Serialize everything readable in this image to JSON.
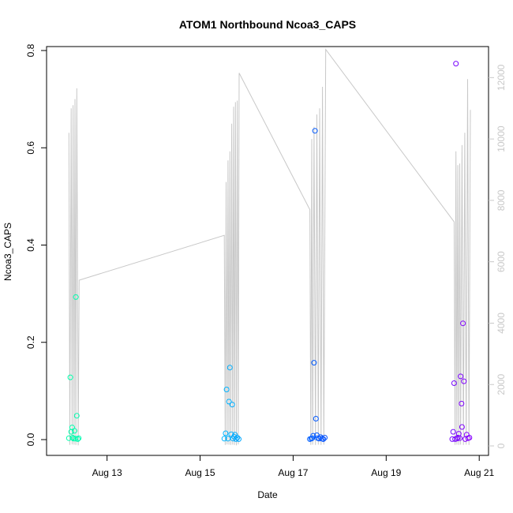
{
  "chart_data": {
    "type": "scatter",
    "title": "ATOM1 Northbound Ncoa3_CAPS",
    "xlabel": "Date",
    "ylabel": "Ncoa3_CAPS",
    "x_tick_labels": [
      "Aug 13",
      "Aug 15",
      "Aug 17",
      "Aug 19",
      "Aug 21"
    ],
    "x_ticks_days": [
      13,
      15,
      17,
      19,
      21
    ],
    "xlim_days": [
      11.7,
      21.2
    ],
    "ylim": [
      0,
      0.8
    ],
    "y_ticks": [
      "0.0",
      "0.2",
      "0.4",
      "0.6",
      "0.8"
    ],
    "y2lim": [
      0,
      12600
    ],
    "y2_ticks": [
      "0",
      "2000",
      "4000",
      "6000",
      "8000",
      "10000",
      "12000"
    ],
    "y2_color": "#c8c8c8",
    "grid": false,
    "point_series": {
      "name": "Ncoa3_CAPS",
      "marker": "open-circle",
      "colormap": [
        "#00ffaa",
        "#00ccff",
        "#0044ff",
        "#8800ff"
      ],
      "points": [
        {
          "day": 12.18,
          "value": 0.003
        },
        {
          "day": 12.21,
          "value": 0.128
        },
        {
          "day": 12.23,
          "value": 0.016
        },
        {
          "day": 12.25,
          "value": 0.025
        },
        {
          "day": 12.26,
          "value": 0.004
        },
        {
          "day": 12.28,
          "value": 0.002
        },
        {
          "day": 12.3,
          "value": 0.018
        },
        {
          "day": 12.32,
          "value": 0.002
        },
        {
          "day": 12.33,
          "value": 0.293
        },
        {
          "day": 12.35,
          "value": 0.049
        },
        {
          "day": 12.37,
          "value": 0.001
        },
        {
          "day": 12.39,
          "value": 0.003
        },
        {
          "day": 15.52,
          "value": 0.002
        },
        {
          "day": 15.55,
          "value": 0.013
        },
        {
          "day": 15.57,
          "value": 0.103
        },
        {
          "day": 15.6,
          "value": 0.002
        },
        {
          "day": 15.62,
          "value": 0.078
        },
        {
          "day": 15.64,
          "value": 0.148
        },
        {
          "day": 15.67,
          "value": 0.011
        },
        {
          "day": 15.69,
          "value": 0.072
        },
        {
          "day": 15.71,
          "value": 0.002
        },
        {
          "day": 15.73,
          "value": 0.006
        },
        {
          "day": 15.75,
          "value": 0.01
        },
        {
          "day": 15.77,
          "value": 0.001
        },
        {
          "day": 15.8,
          "value": 0.004
        },
        {
          "day": 15.83,
          "value": 0.001
        },
        {
          "day": 17.36,
          "value": 0.001
        },
        {
          "day": 17.39,
          "value": 0.002
        },
        {
          "day": 17.41,
          "value": 0.003
        },
        {
          "day": 17.43,
          "value": 0.008
        },
        {
          "day": 17.45,
          "value": 0.158
        },
        {
          "day": 17.47,
          "value": 0.635
        },
        {
          "day": 17.49,
          "value": 0.043
        },
        {
          "day": 17.51,
          "value": 0.009
        },
        {
          "day": 17.53,
          "value": 0.003
        },
        {
          "day": 17.56,
          "value": 0.002
        },
        {
          "day": 17.59,
          "value": 0.005
        },
        {
          "day": 17.62,
          "value": 0.002
        },
        {
          "day": 17.65,
          "value": 0.001
        },
        {
          "day": 17.68,
          "value": 0.004
        },
        {
          "day": 20.42,
          "value": 0.001
        },
        {
          "day": 20.44,
          "value": 0.016
        },
        {
          "day": 20.46,
          "value": 0.116
        },
        {
          "day": 20.48,
          "value": 0.001
        },
        {
          "day": 20.5,
          "value": 0.773
        },
        {
          "day": 20.52,
          "value": 0.002
        },
        {
          "day": 20.54,
          "value": 0.004
        },
        {
          "day": 20.56,
          "value": 0.012
        },
        {
          "day": 20.58,
          "value": 0.003
        },
        {
          "day": 20.6,
          "value": 0.13
        },
        {
          "day": 20.62,
          "value": 0.074
        },
        {
          "day": 20.63,
          "value": 0.026
        },
        {
          "day": 20.65,
          "value": 0.239
        },
        {
          "day": 20.67,
          "value": 0.12
        },
        {
          "day": 20.7,
          "value": 0.001
        },
        {
          "day": 20.73,
          "value": 0.01
        },
        {
          "day": 20.76,
          "value": 0.003
        },
        {
          "day": 20.79,
          "value": 0.004
        }
      ]
    },
    "line_series": {
      "name": "secondary",
      "color": "#c8c8c8",
      "axis": "right",
      "segments": [
        [
          [
            12.18,
            10200
          ],
          [
            12.2,
            30
          ],
          [
            12.23,
            11000
          ],
          [
            12.25,
            50
          ],
          [
            12.27,
            11100
          ],
          [
            12.29,
            40
          ],
          [
            12.31,
            11300
          ],
          [
            12.33,
            30
          ],
          [
            12.35,
            11650
          ],
          [
            12.38,
            20
          ],
          [
            12.4,
            5400
          ],
          [
            15.52,
            6860
          ],
          [
            15.54,
            30
          ],
          [
            15.56,
            8600
          ],
          [
            15.58,
            50
          ],
          [
            15.6,
            9300
          ],
          [
            15.62,
            40
          ],
          [
            15.64,
            9600
          ],
          [
            15.66,
            30
          ],
          [
            15.68,
            10500
          ],
          [
            15.7,
            40
          ],
          [
            15.72,
            11050
          ],
          [
            15.74,
            30
          ],
          [
            15.76,
            11200
          ],
          [
            15.78,
            20
          ],
          [
            15.8,
            11250
          ],
          [
            15.82,
            50
          ],
          [
            15.84,
            12150
          ],
          [
            17.36,
            7700
          ],
          [
            17.38,
            30
          ],
          [
            17.4,
            10000
          ],
          [
            17.42,
            40
          ],
          [
            17.45,
            10400
          ],
          [
            17.48,
            30
          ],
          [
            17.51,
            10800
          ],
          [
            17.54,
            40
          ],
          [
            17.57,
            11000
          ],
          [
            17.6,
            30
          ],
          [
            17.63,
            11700
          ],
          [
            17.66,
            40
          ],
          [
            17.7,
            12920
          ],
          [
            20.46,
            7300
          ],
          [
            20.48,
            30
          ],
          [
            20.5,
            9600
          ],
          [
            20.52,
            40
          ],
          [
            20.54,
            9150
          ],
          [
            20.56,
            30
          ],
          [
            20.58,
            9200
          ],
          [
            20.6,
            40
          ],
          [
            20.63,
            9800
          ],
          [
            20.66,
            30
          ],
          [
            20.69,
            10200
          ],
          [
            20.72,
            40
          ],
          [
            20.75,
            11950
          ],
          [
            20.78,
            30
          ],
          [
            20.81,
            10950
          ]
        ]
      ]
    }
  }
}
